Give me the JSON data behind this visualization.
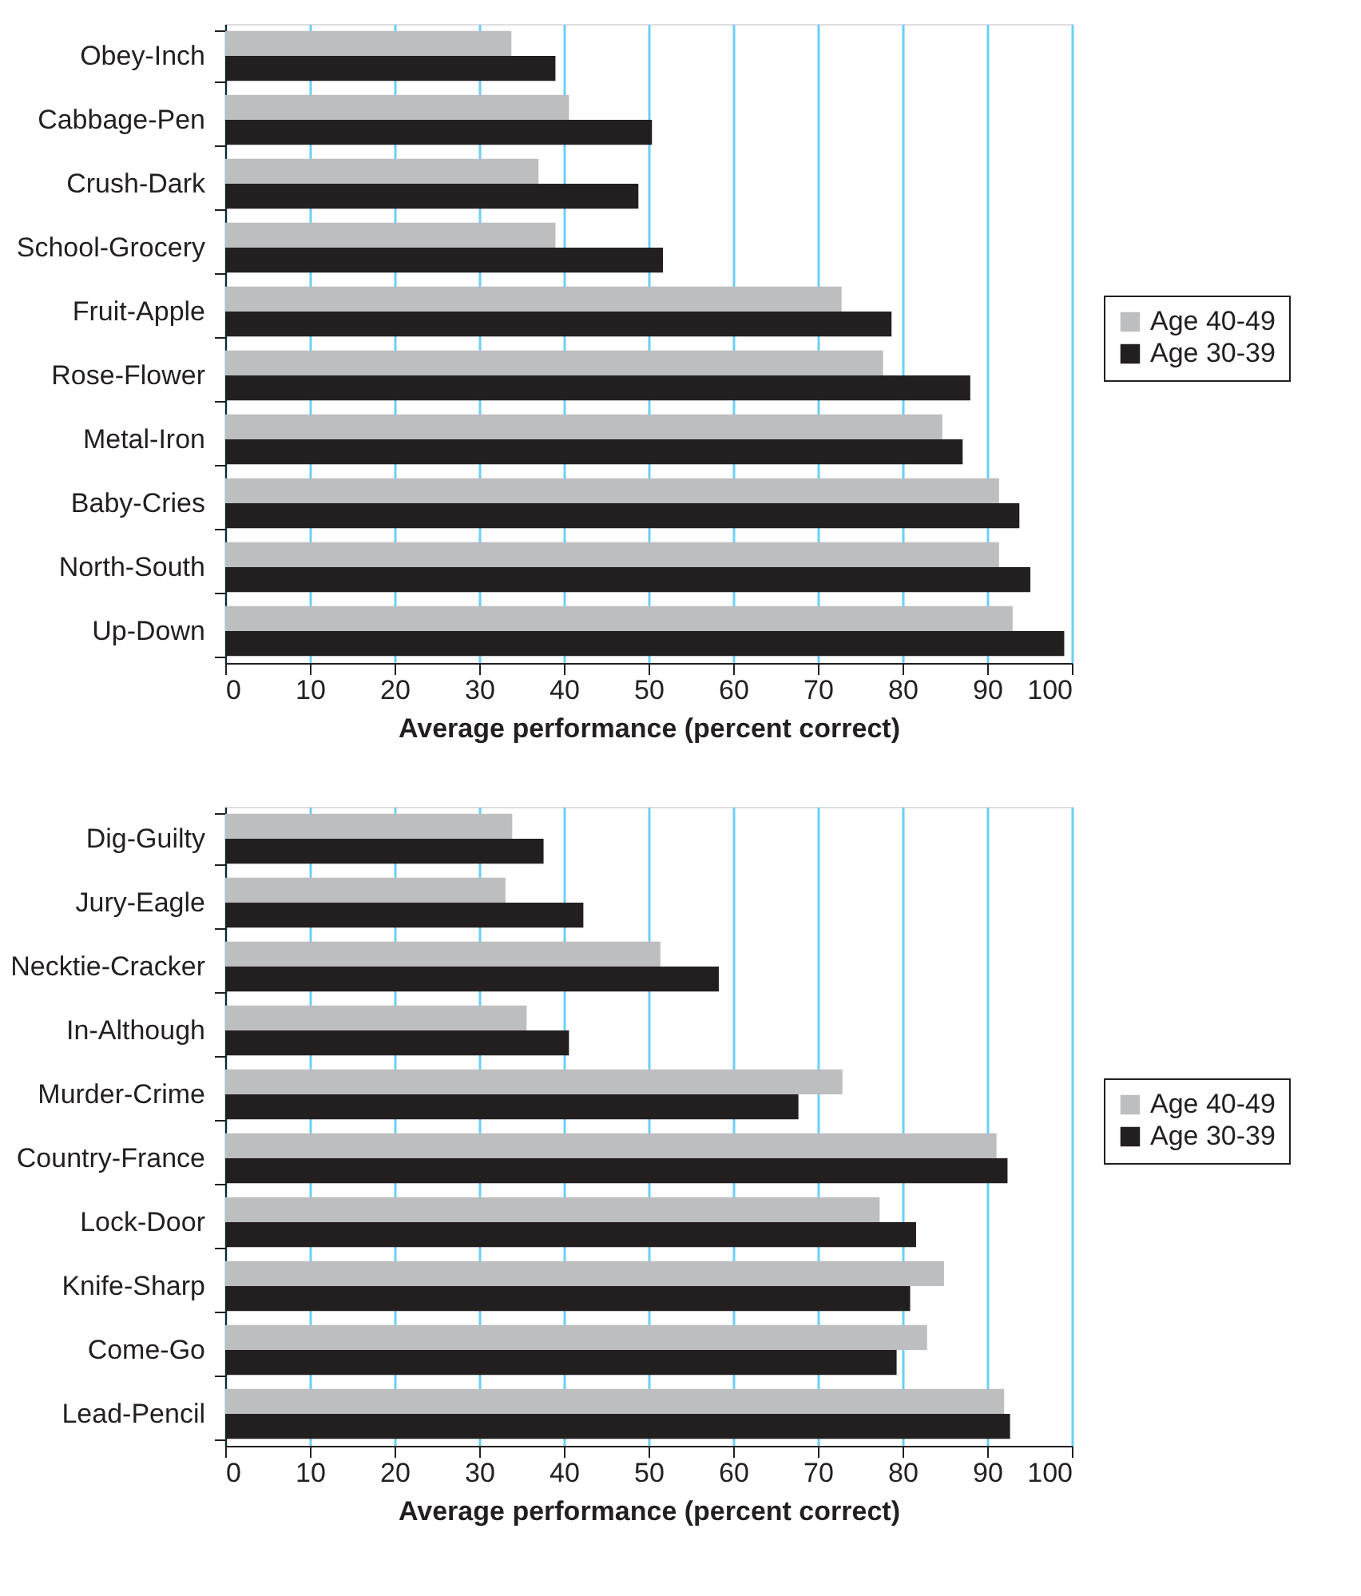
{
  "chart_data": [
    {
      "type": "bar",
      "orientation": "horizontal",
      "categories": [
        "Obey-Inch",
        "Cabbage-Pen",
        "Crush-Dark",
        "School-Grocery",
        "Fruit-Apple",
        "Rose-Flower",
        "Metal-Iron",
        "Baby-Cries",
        "North-South",
        "Up-Down"
      ],
      "series": [
        {
          "name": "Age 40-49",
          "color": "#bcbec0",
          "values": [
            33.8,
            40.6,
            37.0,
            39.0,
            72.8,
            77.7,
            84.7,
            91.4,
            91.4,
            93.0
          ]
        },
        {
          "name": "Age 30-39",
          "color": "#231f20",
          "values": [
            39.0,
            50.4,
            48.8,
            51.7,
            78.7,
            88.0,
            87.1,
            93.8,
            95.1,
            99.1
          ]
        }
      ],
      "xlabel": "Average performance (percent correct)",
      "xlim": [
        0,
        100
      ],
      "xticks": [
        0,
        10,
        20,
        30,
        40,
        50,
        60,
        70,
        80,
        90,
        100
      ],
      "grid": "x",
      "legend": "right"
    },
    {
      "type": "bar",
      "orientation": "horizontal",
      "categories": [
        "Dig-Guilty",
        "Jury-Eagle",
        "Necktie-Cracker",
        "In-Although",
        "Murder-Crime",
        "Country-France",
        "Lock-Door",
        "Knife-Sharp",
        "Come-Go",
        "Lead-Pencil"
      ],
      "series": [
        {
          "name": "Age 40-49",
          "color": "#bcbec0",
          "values": [
            33.9,
            33.1,
            51.4,
            35.6,
            72.9,
            91.1,
            77.3,
            84.9,
            82.9,
            92.0
          ]
        },
        {
          "name": "Age 30-39",
          "color": "#231f20",
          "values": [
            37.6,
            42.3,
            58.3,
            40.6,
            67.7,
            92.4,
            81.6,
            80.9,
            79.3,
            92.7
          ]
        }
      ],
      "xlabel": "Average performance (percent correct)",
      "xlim": [
        0,
        100
      ],
      "xticks": [
        0,
        10,
        20,
        30,
        40,
        50,
        60,
        70,
        80,
        90,
        100
      ],
      "grid": "x",
      "legend": "right"
    }
  ]
}
